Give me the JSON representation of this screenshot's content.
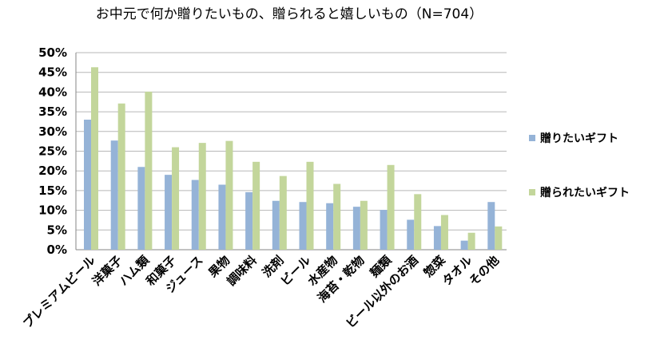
{
  "chart_data": {
    "type": "bar",
    "title": "お中元で何か贈りたいもの、贈られると嬉しいもの（N=704）",
    "categories": [
      "プレミアムビール",
      "洋菓子",
      "ハム類",
      "和菓子",
      "ジュース",
      "果物",
      "調味料",
      "洗剤",
      "ビール",
      "水産物",
      "海苔・乾物",
      "麺類",
      "ビール以外のお酒",
      "惣菜",
      "タオル",
      "その他"
    ],
    "series": [
      {
        "name": "贈りたいギフト",
        "color": "#95b3d7",
        "values": [
          33,
          27.7,
          21,
          19,
          17.7,
          16.5,
          14.6,
          12.4,
          12.1,
          11.8,
          10.9,
          10.1,
          7.6,
          6,
          2.3,
          12.1
        ]
      },
      {
        "name": "贈られたいギフト",
        "color": "#c3d69b",
        "values": [
          46.3,
          37.1,
          40.1,
          26,
          27.1,
          27.6,
          22.3,
          18.7,
          22.3,
          16.7,
          12.4,
          21.5,
          14.1,
          8.8,
          4.3,
          5.9
        ]
      }
    ],
    "yticks": [
      "0%",
      "5%",
      "10%",
      "15%",
      "20%",
      "25%",
      "30%",
      "35%",
      "40%",
      "45%",
      "50%"
    ],
    "ylim": [
      0,
      50
    ],
    "grid": true,
    "legend_position": "right"
  }
}
